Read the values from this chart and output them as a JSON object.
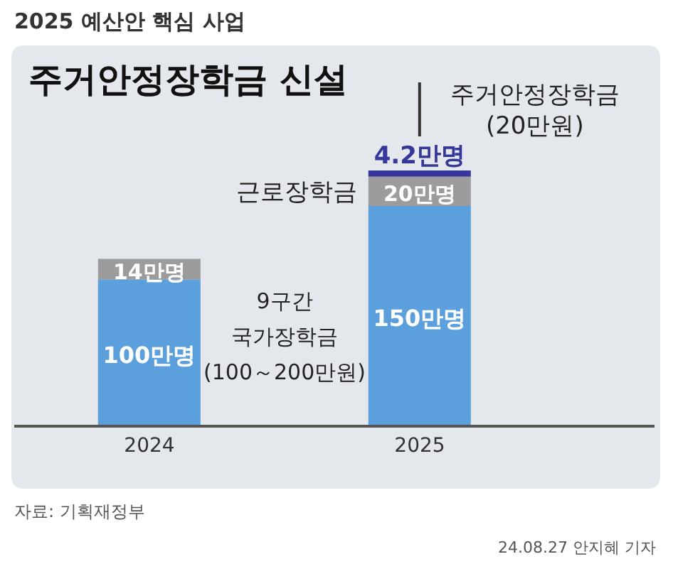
{
  "chart_data": {
    "type": "bar",
    "title": "2025 예산안 핵심 사업",
    "subtitle": "주거안정장학금 신설",
    "categories": [
      "2024",
      "2025"
    ],
    "stacked": true,
    "series": [
      {
        "color": "#5b9fdc",
        "values": [
          100,
          150
        ],
        "value_labels": [
          "100만명",
          "150만명"
        ]
      },
      {
        "name": "근로장학금",
        "color": "#9c9c9c",
        "values": [
          14,
          20
        ],
        "value_labels": [
          "14만명",
          "20만명"
        ]
      },
      {
        "name": "주거안정장학금\n(20만원)",
        "color": "#35379a",
        "values": [
          null,
          4.2
        ],
        "value_labels": [
          null,
          "4.2만명"
        ]
      }
    ],
    "annotations": [
      "9구간\n국가장학금\n(100～200만원)",
      "자료: 기획재정부",
      "24.08.27 안지혜 기자"
    ]
  }
}
